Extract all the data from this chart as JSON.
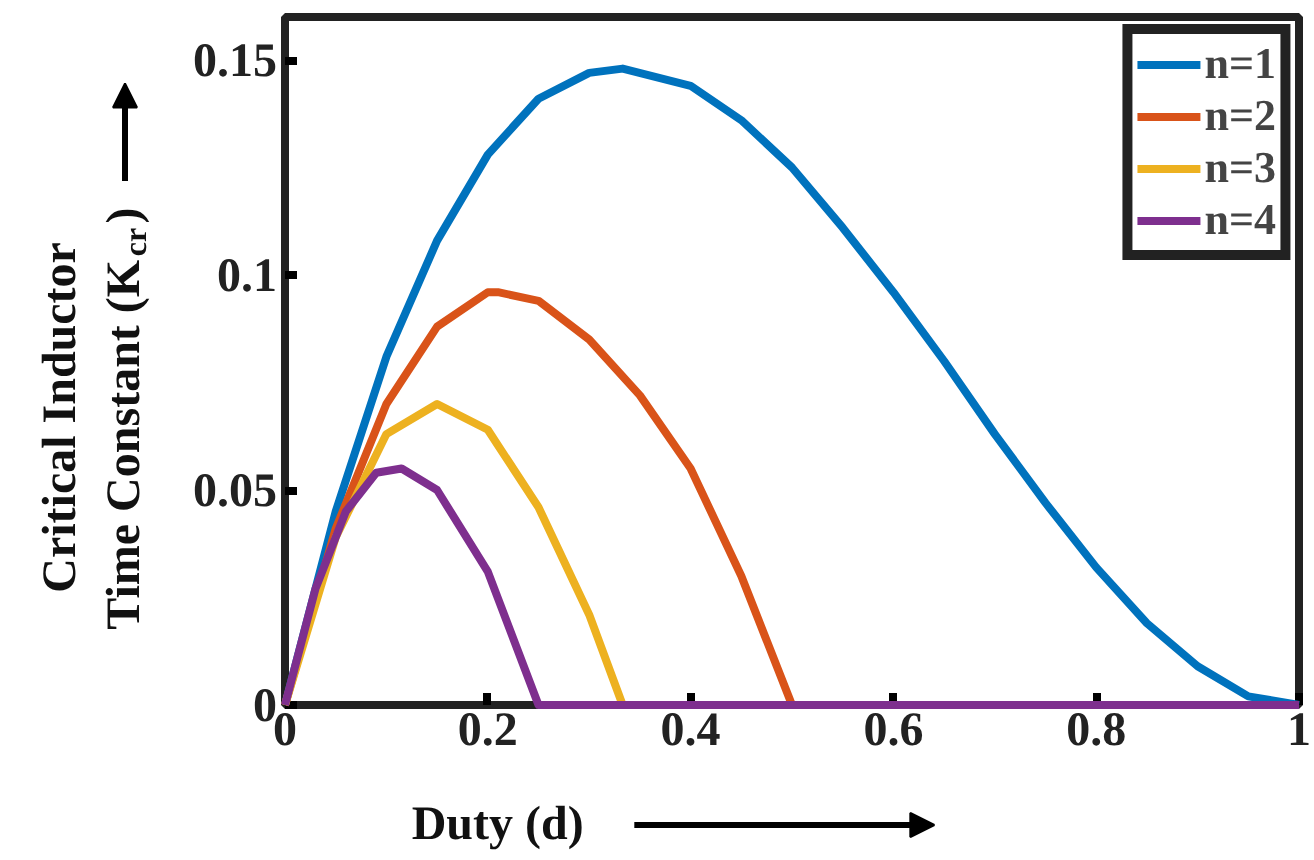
{
  "chart_data": {
    "type": "line",
    "xlabel": "Duty (d)",
    "ylabel": "Critical Inductor\nTime Constant (K$_{cr}$)",
    "xlim": [
      0,
      1
    ],
    "ylim": [
      0,
      0.16
    ],
    "xticks": [
      0,
      0.2,
      0.4,
      0.6,
      0.8,
      1
    ],
    "yticks": [
      0,
      0.05,
      0.1,
      0.15
    ],
    "grid": false,
    "legend": "top right",
    "line_style": "solid",
    "series": [
      {
        "name": "n=1",
        "color": "#0072bd",
        "x": [
          0,
          0.05,
          0.1,
          0.15,
          0.2,
          0.25,
          0.3,
          0.333,
          0.4,
          0.45,
          0.5,
          0.55,
          0.6,
          0.65,
          0.7,
          0.75,
          0.8,
          0.85,
          0.9,
          0.95,
          1
        ],
        "values": [
          0,
          0.045,
          0.081,
          0.108,
          0.128,
          0.141,
          0.147,
          0.148,
          0.144,
          0.136,
          0.125,
          0.111,
          0.096,
          0.08,
          0.063,
          0.047,
          0.032,
          0.019,
          0.009,
          0.002,
          0
        ]
      },
      {
        "name": "n=2",
        "color": "#d95319",
        "x": [
          0,
          0.05,
          0.1,
          0.15,
          0.2,
          0.21,
          0.25,
          0.3,
          0.35,
          0.4,
          0.45,
          0.5
        ],
        "values": [
          0,
          0.041,
          0.07,
          0.088,
          0.096,
          0.096,
          0.094,
          0.085,
          0.072,
          0.055,
          0.03,
          0
        ]
      },
      {
        "name": "n=3",
        "color": "#edb120",
        "x": [
          0,
          0.05,
          0.1,
          0.15,
          0.2,
          0.25,
          0.3,
          0.333
        ],
        "values": [
          0,
          0.039,
          0.063,
          0.07,
          0.064,
          0.046,
          0.021,
          0
        ]
      },
      {
        "name": "n=4",
        "color": "#7e2f8e",
        "x": [
          0,
          0.03,
          0.06,
          0.09,
          0.115,
          0.15,
          0.2,
          0.25,
          0.5,
          1
        ],
        "values": [
          0,
          0.027,
          0.045,
          0.054,
          0.055,
          0.05,
          0.031,
          0,
          0,
          0
        ]
      }
    ]
  }
}
